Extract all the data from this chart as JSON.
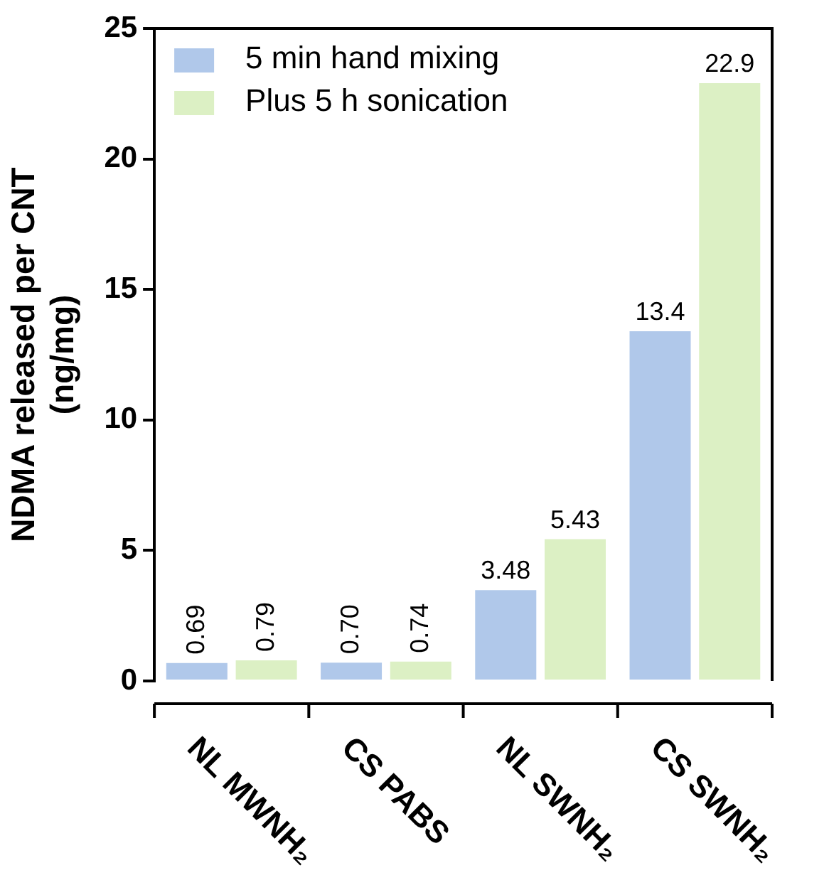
{
  "chart_data": {
    "type": "bar",
    "ylabel": "NDMA released per CNT\n(ng/mg)",
    "categories": [
      "NL MWNH₂",
      "CS PABS",
      "NL SWNH₂",
      "CS SWNH₂"
    ],
    "series": [
      {
        "name": "5 min hand mixing",
        "color": "#b0c8ea",
        "values": [
          0.69,
          0.7,
          3.48,
          13.4
        ],
        "value_labels": [
          "0.69",
          "0.70",
          "3.48",
          "13.4"
        ]
      },
      {
        "name": "Plus 5 h sonication",
        "color": "#dcf0c4",
        "values": [
          0.79,
          0.74,
          5.43,
          22.9
        ],
        "value_labels": [
          "0.79",
          "0.74",
          "5.43",
          "22.9"
        ]
      }
    ],
    "ylim": [
      0,
      25
    ],
    "yticks": [
      0,
      5,
      10,
      15,
      20,
      25
    ],
    "grid": false,
    "legend": "top left"
  }
}
